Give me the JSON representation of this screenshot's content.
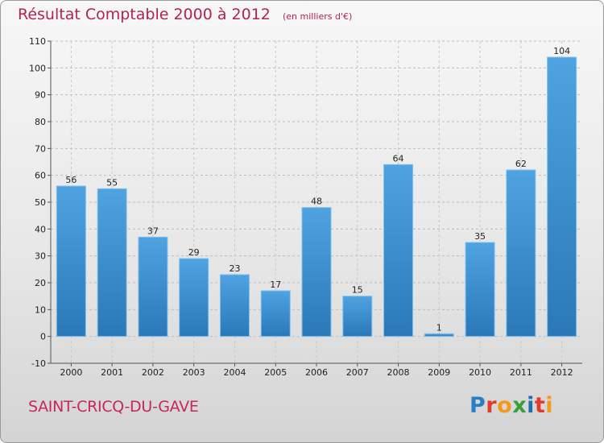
{
  "header": {
    "title": "Résultat Comptable 2000 à 2012",
    "subtitle": "(en milliers d'€)"
  },
  "footer": {
    "commune": "SAINT-CRICQ-DU-GAVE",
    "brand": {
      "text": "Proxiti",
      "letters": [
        {
          "ch": "P",
          "color": "#2a7fc0"
        },
        {
          "ch": "r",
          "color": "#e23a2c"
        },
        {
          "ch": "o",
          "color": "#f39a1c"
        },
        {
          "ch": "x",
          "color": "#3a9e3a"
        },
        {
          "ch": "i",
          "color": "#1f6fb0"
        },
        {
          "ch": "t",
          "color": "#e23a2c"
        },
        {
          "ch": "i",
          "color": "#f39a1c"
        }
      ]
    }
  },
  "chart_data": {
    "type": "bar",
    "title": "Résultat Comptable 2000 à 2012",
    "subtitle": "(en milliers d'€)",
    "categories": [
      "2000",
      "2001",
      "2002",
      "2003",
      "2004",
      "2005",
      "2006",
      "2007",
      "2008",
      "2009",
      "2010",
      "2011",
      "2012"
    ],
    "values": [
      56,
      55,
      37,
      29,
      23,
      17,
      48,
      15,
      64,
      1,
      35,
      62,
      104
    ],
    "value_labels": [
      "56",
      "55",
      "37",
      "29",
      "23",
      "17",
      "48",
      "15",
      "64",
      "1",
      "35",
      "62",
      "104"
    ],
    "ylim": [
      -10,
      110
    ],
    "yticks": [
      -10,
      0,
      10,
      20,
      30,
      40,
      50,
      60,
      70,
      80,
      90,
      100,
      110
    ],
    "ytick_labels": [
      "-10",
      "0",
      "10",
      "20",
      "30",
      "40",
      "50",
      "60",
      "70",
      "80",
      "90",
      "100",
      "110"
    ],
    "xlabel": "",
    "ylabel": "",
    "grid": true,
    "bar_color": "#4fa3e0",
    "bar_color_dark": "#2a78b8"
  }
}
